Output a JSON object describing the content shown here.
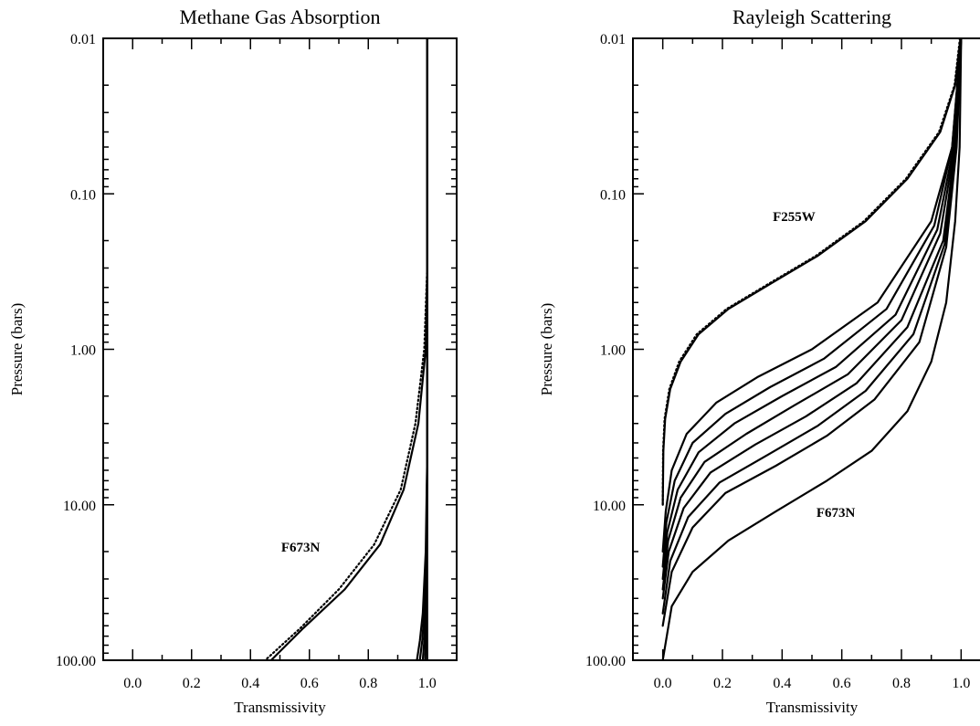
{
  "chart_data": [
    {
      "type": "line",
      "title": "Methane Gas Absorption",
      "xlabel": "Transmissivity",
      "ylabel": "Pressure (bars)",
      "xlim": [
        -0.1,
        1.1
      ],
      "ylim": [
        100.0,
        0.01
      ],
      "yscale": "log",
      "y_inverted": true,
      "xticks": [
        "0.0",
        "0.2",
        "0.4",
        "0.6",
        "0.8",
        "1.0"
      ],
      "yticks": [
        "0.01",
        "0.10",
        "1.00",
        "10.00",
        "100.00"
      ],
      "grid": false,
      "annotations": [
        {
          "text": "F673N",
          "x": 0.57,
          "y": 20.0
        }
      ],
      "series": [
        {
          "style": "solid",
          "x": [
            1.0,
            1.0,
            0.995,
            0.97,
            0.92,
            0.84,
            0.72,
            0.58,
            0.47
          ],
          "y": [
            0.01,
            0.3,
            1.0,
            3.0,
            8.0,
            18.0,
            35.0,
            62.0,
            100.0
          ]
        },
        {
          "style": "dotted",
          "x": [
            1.0,
            1.0,
            0.99,
            0.96,
            0.91,
            0.82,
            0.7,
            0.57,
            0.45
          ],
          "y": [
            0.01,
            0.3,
            1.0,
            3.0,
            8.0,
            18.0,
            35.0,
            62.0,
            100.0
          ]
        },
        {
          "style": "solid",
          "x": [
            1.0,
            1.0,
            1.0,
            0.995,
            0.985,
            0.975,
            0.965
          ],
          "y": [
            0.01,
            1.0,
            5.0,
            20.0,
            50.0,
            75.0,
            100.0
          ]
        },
        {
          "style": "solid",
          "x": [
            1.0,
            1.0,
            1.0,
            0.997,
            0.99,
            0.983,
            0.975
          ],
          "y": [
            0.01,
            1.0,
            5.0,
            20.0,
            50.0,
            75.0,
            100.0
          ]
        },
        {
          "style": "solid",
          "x": [
            1.0,
            1.0,
            1.0,
            0.998,
            0.994,
            0.99,
            0.985
          ],
          "y": [
            0.01,
            1.0,
            5.0,
            20.0,
            50.0,
            75.0,
            100.0
          ]
        },
        {
          "style": "solid",
          "x": [
            1.0,
            1.0,
            1.0,
            0.999,
            0.997,
            0.995,
            0.993
          ],
          "y": [
            0.01,
            1.0,
            5.0,
            20.0,
            50.0,
            75.0,
            100.0
          ]
        },
        {
          "style": "solid",
          "x": [
            1.0,
            1.0,
            1.0,
            1.0,
            1.0
          ],
          "y": [
            0.01,
            1.0,
            10.0,
            50.0,
            100.0
          ]
        }
      ]
    },
    {
      "type": "line",
      "title": "Rayleigh Scattering",
      "xlabel": "Transmissivity",
      "ylabel": "Pressure (bars)",
      "xlim": [
        -0.1,
        1.1
      ],
      "ylim": [
        100.0,
        0.01
      ],
      "yscale": "log",
      "y_inverted": true,
      "xticks": [
        "0.0",
        "0.2",
        "0.4",
        "0.6",
        "0.8",
        "1.0"
      ],
      "yticks": [
        "0.01",
        "0.10",
        "1.00",
        "10.00",
        "100.00"
      ],
      "grid": false,
      "annotations": [
        {
          "text": "F255W",
          "x": 0.44,
          "y": 0.15
        },
        {
          "text": "F673N",
          "x": 0.58,
          "y": 12.0
        }
      ],
      "series": [
        {
          "style": "solid",
          "x": [
            0.998,
            0.98,
            0.93,
            0.82,
            0.68,
            0.52,
            0.36,
            0.22,
            0.12,
            0.06,
            0.025,
            0.008,
            0.002,
            0.0
          ],
          "y": [
            0.01,
            0.02,
            0.04,
            0.08,
            0.15,
            0.25,
            0.38,
            0.55,
            0.8,
            1.2,
            1.8,
            2.8,
            4.5,
            10.0
          ]
        },
        {
          "style": "dotted",
          "x": [
            0.996,
            0.978,
            0.926,
            0.815,
            0.674,
            0.514,
            0.354,
            0.214,
            0.114,
            0.055,
            0.022,
            0.006,
            0.001,
            0.0
          ],
          "y": [
            0.01,
            0.02,
            0.04,
            0.08,
            0.15,
            0.25,
            0.38,
            0.55,
            0.8,
            1.2,
            1.8,
            2.8,
            4.5,
            10.0
          ]
        },
        {
          "style": "solid",
          "x": [
            1.0,
            0.97,
            0.9,
            0.72,
            0.5,
            0.32,
            0.18,
            0.08,
            0.03,
            0.01,
            0.0
          ],
          "y": [
            0.01,
            0.05,
            0.15,
            0.5,
            1.0,
            1.5,
            2.2,
            3.5,
            6.0,
            11.0,
            20.0
          ]
        },
        {
          "style": "solid",
          "x": [
            1.0,
            0.97,
            0.91,
            0.75,
            0.54,
            0.36,
            0.21,
            0.1,
            0.04,
            0.012,
            0.0
          ],
          "y": [
            0.01,
            0.05,
            0.16,
            0.55,
            1.15,
            1.75,
            2.6,
            4.0,
            7.0,
            13.0,
            25.0
          ]
        },
        {
          "style": "solid",
          "x": [
            1.0,
            0.975,
            0.92,
            0.78,
            0.58,
            0.4,
            0.24,
            0.12,
            0.05,
            0.015,
            0.0
          ],
          "y": [
            0.01,
            0.05,
            0.17,
            0.6,
            1.3,
            2.0,
            3.0,
            4.6,
            8.0,
            15.0,
            30.0
          ]
        },
        {
          "style": "solid",
          "x": [
            1.0,
            0.978,
            0.93,
            0.8,
            0.62,
            0.44,
            0.28,
            0.14,
            0.06,
            0.018,
            0.0
          ],
          "y": [
            0.01,
            0.05,
            0.18,
            0.65,
            1.45,
            2.3,
            3.5,
            5.3,
            9.0,
            17.0,
            35.0
          ]
        },
        {
          "style": "solid",
          "x": [
            1.0,
            0.98,
            0.94,
            0.82,
            0.65,
            0.48,
            0.31,
            0.16,
            0.07,
            0.02,
            0.0
          ],
          "y": [
            0.01,
            0.05,
            0.2,
            0.72,
            1.65,
            2.7,
            4.1,
            6.2,
            10.5,
            20.0,
            40.0
          ]
        },
        {
          "style": "solid",
          "x": [
            1.0,
            0.982,
            0.945,
            0.84,
            0.68,
            0.52,
            0.35,
            0.19,
            0.085,
            0.025,
            0.0
          ],
          "y": [
            0.01,
            0.05,
            0.21,
            0.8,
            1.85,
            3.1,
            4.8,
            7.2,
            12.0,
            23.0,
            50.0
          ]
        },
        {
          "style": "solid",
          "x": [
            1.0,
            0.985,
            0.95,
            0.86,
            0.71,
            0.55,
            0.38,
            0.21,
            0.1,
            0.03,
            0.0
          ],
          "y": [
            0.01,
            0.05,
            0.22,
            0.9,
            2.1,
            3.6,
            5.6,
            8.4,
            14.0,
            27.0,
            60.0
          ]
        },
        {
          "style": "solid",
          "x": [
            1.0,
            0.995,
            0.98,
            0.95,
            0.9,
            0.82,
            0.7,
            0.55,
            0.38,
            0.22,
            0.1,
            0.03,
            0.0
          ],
          "y": [
            0.01,
            0.05,
            0.15,
            0.5,
            1.2,
            2.5,
            4.5,
            7.0,
            11.0,
            17.0,
            27.0,
            45.0,
            100.0
          ]
        }
      ]
    }
  ]
}
